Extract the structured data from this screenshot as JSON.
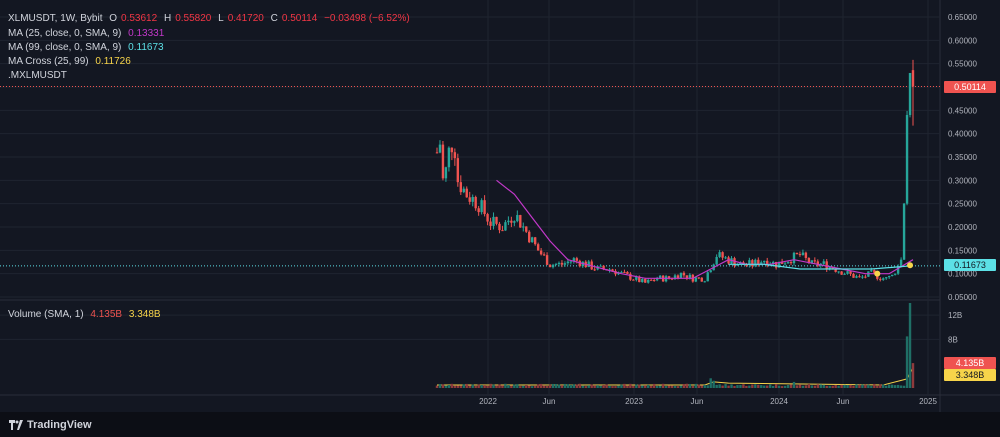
{
  "header": {
    "symbol": "XLMUSDT, 1W, Bybit",
    "open_label": "O",
    "open": "0.53612",
    "high_label": "H",
    "high": "0.55820",
    "low_label": "L",
    "low": "0.41720",
    "close_label": "C",
    "close": "0.50114",
    "change": "−0.03498 (−6.52%)"
  },
  "indicators": {
    "ma25_label": "MA (25, close, 0, SMA, 9)",
    "ma25_value": "0.13331",
    "ma99_label": "MA (99, close, 0, SMA, 9)",
    "ma99_value": "0.11673",
    "cross_label": "MA Cross (25, 99)",
    "cross_value": "0.11726",
    "symbol2": ".MXLMUSDT"
  },
  "volume_header": {
    "label": "Volume (SMA, 1)",
    "value1": "4.135B",
    "value2": "3.348B"
  },
  "price_labels": {
    "last": "0.50114",
    "ma99": "0.11673"
  },
  "volume_labels": {
    "last": "4.135B",
    "sma": "3.348B"
  },
  "footer": {
    "brand": "TradingView"
  },
  "colors": {
    "background": "#131722",
    "up": "#26a69a",
    "down": "#ef5350",
    "ma25": "#c238c9",
    "ma99": "#5ce0e6",
    "cross": "#f7d44a",
    "grid": "#1f2430",
    "text": "#b2b5be"
  },
  "chart_data": {
    "type": "candlestick",
    "title": "XLMUSDT, 1W, Bybit",
    "price_axis": {
      "ticks": [
        "0.65000",
        "0.60000",
        "0.55000",
        "0.50000",
        "0.45000",
        "0.40000",
        "0.35000",
        "0.30000",
        "0.25000",
        "0.20000",
        "0.15000",
        "0.10000",
        "0.05000"
      ],
      "ylim": [
        0.05,
        0.65
      ]
    },
    "volume_axis": {
      "ticks": [
        "12B",
        "8B"
      ],
      "ylim": [
        0,
        14
      ]
    },
    "time_axis": {
      "ticks": [
        "2022",
        "Jun",
        "2023",
        "Jun",
        "2024",
        "Jun",
        "2025"
      ]
    },
    "last_price": 0.50114,
    "ma99_last": 0.11673,
    "price_path": [
      [
        0,
        0.36
      ],
      [
        1,
        0.38
      ],
      [
        2,
        0.3
      ],
      [
        3,
        0.32
      ],
      [
        4,
        0.36
      ],
      [
        5,
        0.38
      ],
      [
        6,
        0.37
      ],
      [
        7,
        0.3
      ],
      [
        10,
        0.27
      ],
      [
        14,
        0.25
      ],
      [
        18,
        0.21
      ],
      [
        22,
        0.2
      ],
      [
        26,
        0.23
      ],
      [
        30,
        0.19
      ],
      [
        34,
        0.15
      ],
      [
        38,
        0.12
      ],
      [
        42,
        0.12
      ],
      [
        46,
        0.13
      ],
      [
        50,
        0.12
      ],
      [
        54,
        0.11
      ],
      [
        58,
        0.11
      ],
      [
        62,
        0.1
      ],
      [
        66,
        0.09
      ],
      [
        70,
        0.08
      ],
      [
        74,
        0.09
      ],
      [
        78,
        0.09
      ],
      [
        82,
        0.1
      ],
      [
        86,
        0.09
      ],
      [
        90,
        0.09
      ],
      [
        94,
        0.14
      ],
      [
        98,
        0.13
      ],
      [
        102,
        0.12
      ],
      [
        106,
        0.12
      ],
      [
        110,
        0.13
      ],
      [
        114,
        0.12
      ],
      [
        118,
        0.13
      ],
      [
        122,
        0.14
      ],
      [
        126,
        0.12
      ],
      [
        130,
        0.12
      ],
      [
        134,
        0.11
      ],
      [
        138,
        0.1
      ],
      [
        142,
        0.09
      ],
      [
        146,
        0.1
      ],
      [
        150,
        0.09
      ],
      [
        154,
        0.1
      ],
      [
        156,
        0.13
      ],
      [
        157,
        0.25
      ],
      [
        158,
        0.44
      ],
      [
        159,
        0.53
      ],
      [
        160,
        0.5
      ]
    ],
    "ma25": [
      [
        20,
        0.3
      ],
      [
        26,
        0.27
      ],
      [
        32,
        0.22
      ],
      [
        38,
        0.17
      ],
      [
        44,
        0.13
      ],
      [
        50,
        0.12
      ],
      [
        56,
        0.11
      ],
      [
        62,
        0.1
      ],
      [
        70,
        0.09
      ],
      [
        78,
        0.09
      ],
      [
        86,
        0.09
      ],
      [
        92,
        0.11
      ],
      [
        98,
        0.13
      ],
      [
        104,
        0.12
      ],
      [
        112,
        0.12
      ],
      [
        120,
        0.13
      ],
      [
        128,
        0.12
      ],
      [
        136,
        0.11
      ],
      [
        144,
        0.1
      ],
      [
        152,
        0.1
      ],
      [
        160,
        0.13
      ]
    ],
    "ma99": [
      [
        98,
        0.12
      ],
      [
        110,
        0.12
      ],
      [
        122,
        0.11
      ],
      [
        134,
        0.11
      ],
      [
        146,
        0.11
      ],
      [
        160,
        0.117
      ]
    ],
    "volume": {
      "series": [
        {
          "name": "Volume",
          "last": 4.135
        },
        {
          "name": "SMA",
          "last": 3.348
        }
      ],
      "spikes": [
        [
          92,
          1.6
        ],
        [
          93,
          1.2
        ],
        [
          120,
          1.0
        ],
        [
          158,
          8.5
        ],
        [
          159,
          14
        ],
        [
          160,
          4.1
        ]
      ]
    }
  }
}
